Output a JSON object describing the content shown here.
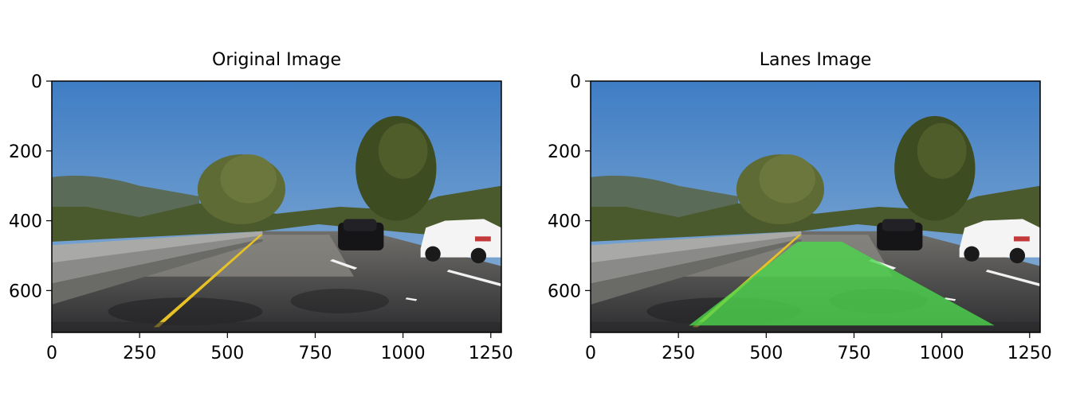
{
  "chart_data": [
    {
      "type": "image",
      "title": "Original Image",
      "xlim": [
        0,
        1280
      ],
      "ylim": [
        720,
        0
      ],
      "xticks": [
        0,
        250,
        500,
        750,
        1000,
        1250
      ],
      "xtick_labels": [
        "0",
        "250",
        "500",
        "750",
        "1000",
        "1250"
      ],
      "yticks": [
        0,
        200,
        400,
        600
      ],
      "ytick_labels": [
        "0",
        "200",
        "400",
        "600"
      ],
      "lane_overlay": null
    },
    {
      "type": "image",
      "title": "Lanes Image",
      "xlim": [
        0,
        1280
      ],
      "ylim": [
        720,
        0
      ],
      "xticks": [
        0,
        250,
        500,
        750,
        1000,
        1250
      ],
      "xtick_labels": [
        "0",
        "250",
        "500",
        "750",
        "1000",
        "1250"
      ],
      "yticks": [
        0,
        200,
        400,
        600
      ],
      "ytick_labels": [
        "0",
        "200",
        "400",
        "600"
      ],
      "lane_overlay": {
        "color": "#4cd64c",
        "polygon": [
          [
            280,
            700
          ],
          [
            590,
            460
          ],
          [
            715,
            460
          ],
          [
            1150,
            700
          ]
        ]
      }
    }
  ],
  "colors": {
    "sky": "#4f86c4",
    "road": "#3d3d40",
    "foliage": "#4a5a2c",
    "yellow_line": "#e8c225",
    "lane_fill": "#4cd64c"
  }
}
